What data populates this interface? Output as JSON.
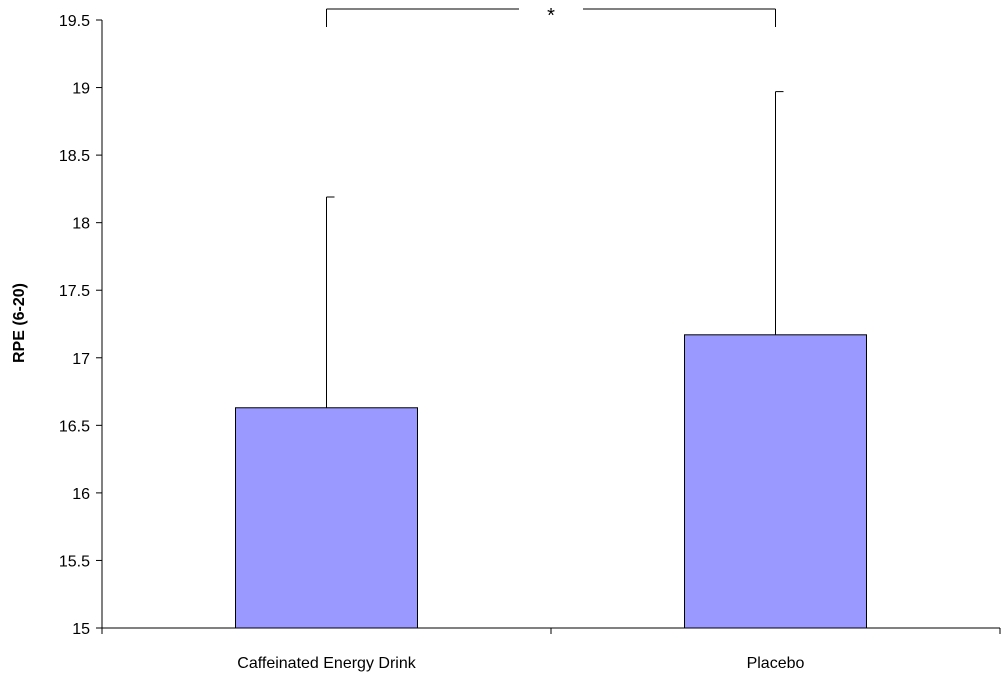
{
  "chart_data": {
    "type": "bar",
    "title": "",
    "xlabel": "",
    "ylabel": "RPE (6-20)",
    "ylim": [
      15,
      19.5
    ],
    "yticks": [
      15,
      15.5,
      16,
      16.5,
      17,
      17.5,
      18,
      18.5,
      19,
      19.5
    ],
    "ytick_labels": [
      "15",
      "15.5",
      "16",
      "16.5",
      "17",
      "17.5",
      "18",
      "18.5",
      "19",
      "19.5"
    ],
    "categories": [
      "Caffeinated Energy Drink",
      "Placebo"
    ],
    "values": [
      16.63,
      17.17
    ],
    "error_upper": [
      18.19,
      18.97
    ],
    "bar_color": "#9999ff",
    "grid": false,
    "legend": "none",
    "significance": {
      "between": [
        0,
        1
      ],
      "label": "*"
    }
  }
}
